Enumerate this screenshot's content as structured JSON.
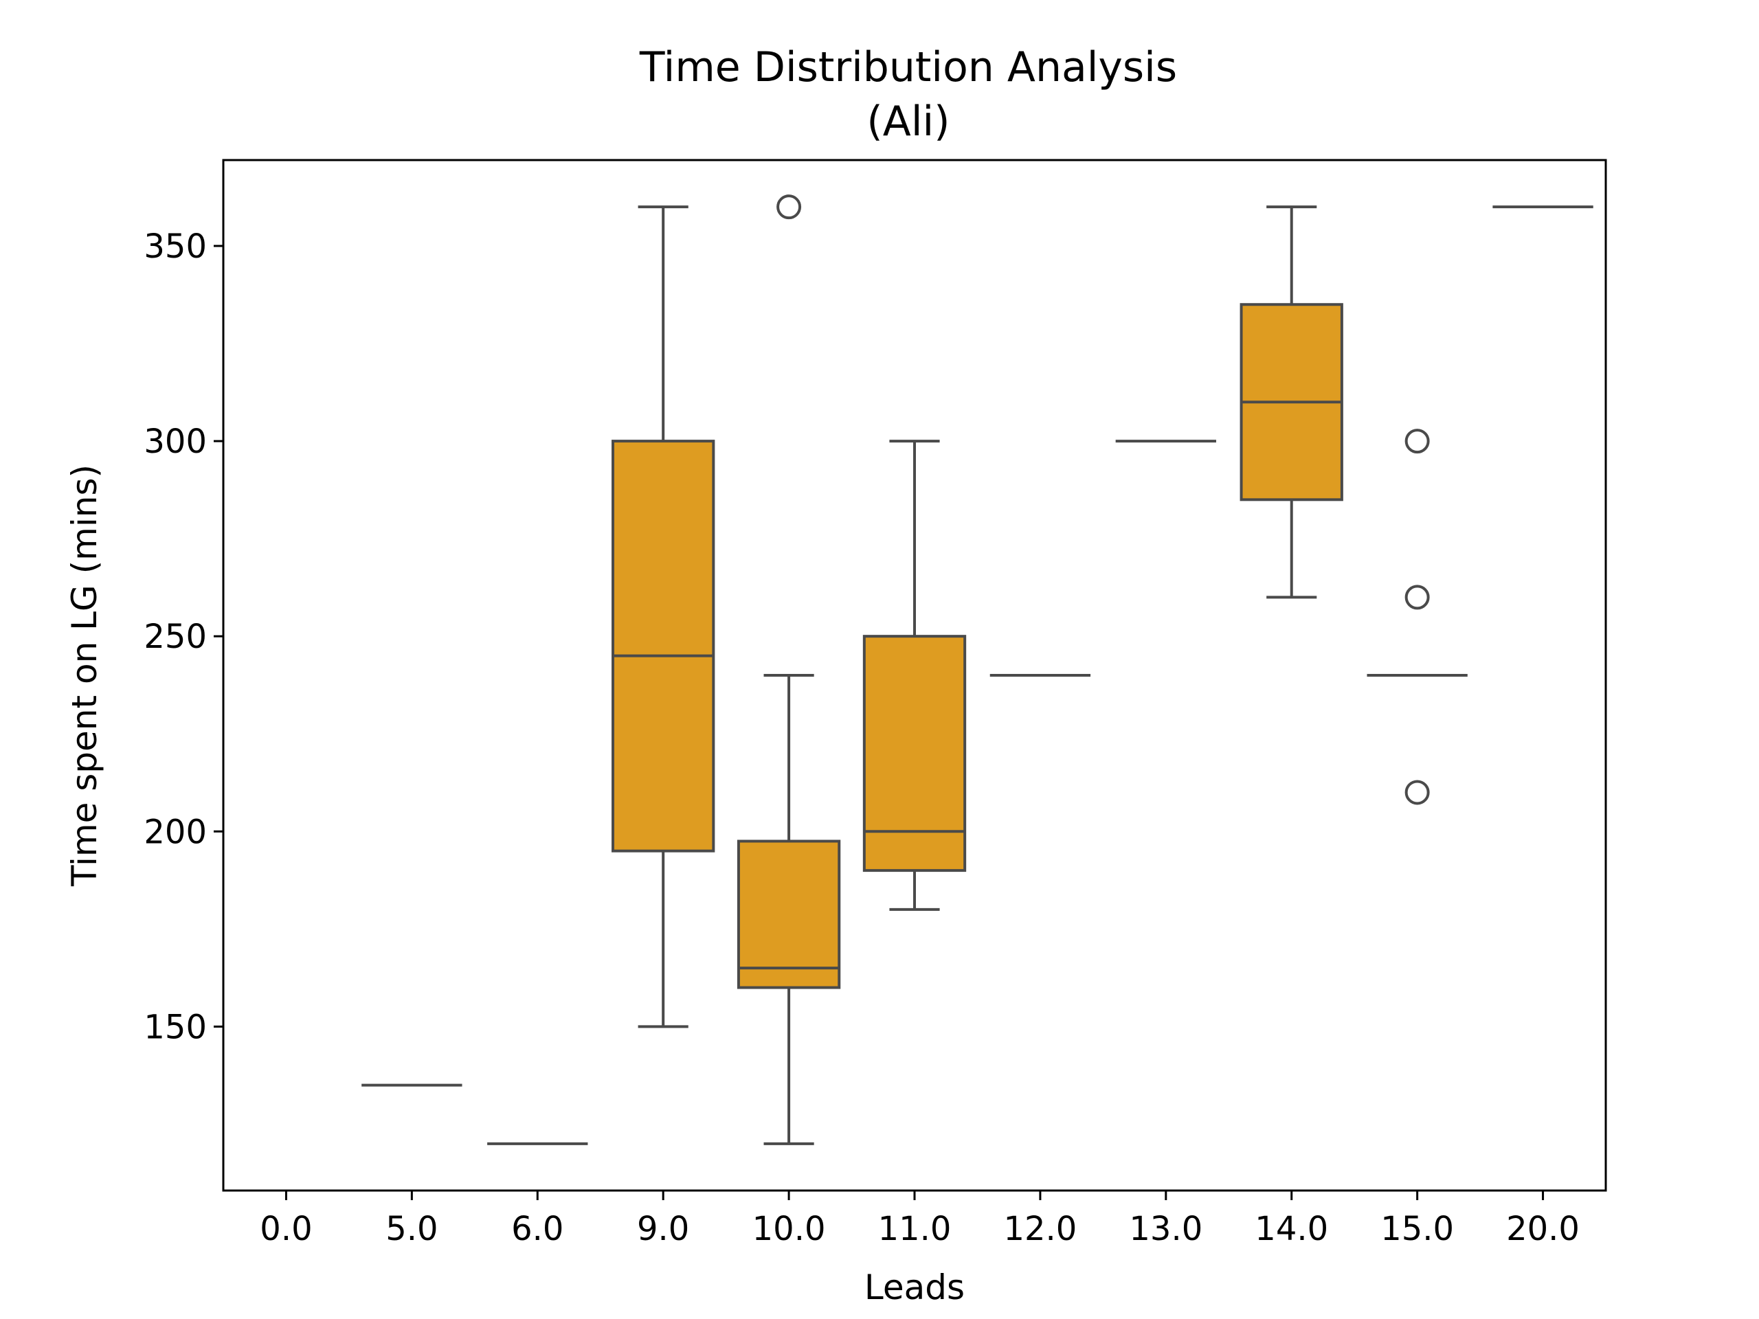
{
  "chart_data": {
    "type": "box",
    "title": "Time Distribution Analysis",
    "subtitle": "(Ali)",
    "xlabel": "Leads",
    "ylabel": "Time spent on LG (mins)",
    "ylim": [
      108,
      372
    ],
    "yticks": [
      150,
      200,
      250,
      300,
      350
    ],
    "box_color": "#de9c21",
    "line_color": "#4a4a4a",
    "categories": [
      "0.0",
      "5.0",
      "6.0",
      "9.0",
      "10.0",
      "11.0",
      "12.0",
      "13.0",
      "14.0",
      "15.0",
      "20.0"
    ],
    "boxes": [
      {
        "category": "0.0",
        "values": null
      },
      {
        "category": "5.0",
        "whislo": 135,
        "q1": 135,
        "median": 135,
        "q3": 135,
        "whishi": 135,
        "fliers": []
      },
      {
        "category": "6.0",
        "whislo": 120,
        "q1": 120,
        "median": 120,
        "q3": 120,
        "whishi": 120,
        "fliers": []
      },
      {
        "category": "9.0",
        "whislo": 150,
        "q1": 195,
        "median": 245,
        "q3": 300,
        "whishi": 360,
        "fliers": []
      },
      {
        "category": "10.0",
        "whislo": 120,
        "q1": 160,
        "median": 165,
        "q3": 197.5,
        "whishi": 240,
        "fliers": [
          360
        ]
      },
      {
        "category": "11.0",
        "whislo": 180,
        "q1": 190,
        "median": 200,
        "q3": 250,
        "whishi": 300,
        "fliers": []
      },
      {
        "category": "12.0",
        "whislo": 240,
        "q1": 240,
        "median": 240,
        "q3": 240,
        "whishi": 240,
        "fliers": []
      },
      {
        "category": "13.0",
        "whislo": 300,
        "q1": 300,
        "median": 300,
        "q3": 300,
        "whishi": 300,
        "fliers": []
      },
      {
        "category": "14.0",
        "whislo": 260,
        "q1": 285,
        "median": 310,
        "q3": 335,
        "whishi": 360,
        "fliers": []
      },
      {
        "category": "15.0",
        "whislo": 240,
        "q1": 240,
        "median": 240,
        "q3": 240,
        "whishi": 240,
        "fliers": [
          300,
          260,
          210
        ]
      },
      {
        "category": "20.0",
        "whislo": 360,
        "q1": 360,
        "median": 360,
        "q3": 360,
        "whishi": 360,
        "fliers": []
      }
    ]
  }
}
